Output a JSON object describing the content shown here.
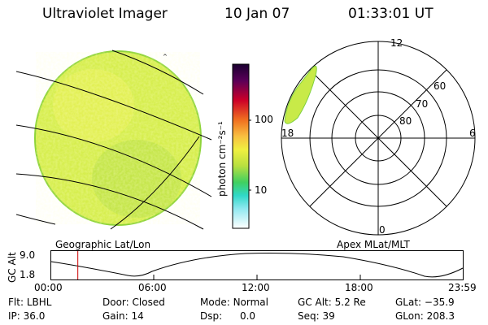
{
  "header": {
    "title": "Ultraviolet Imager",
    "date": "10 Jan 07",
    "time": "01:33:01 UT"
  },
  "colorbar": {
    "unit_label": "photon cm⁻²s⁻¹",
    "tick_high": "100",
    "tick_low": "10"
  },
  "geo_panel": {
    "caption": "Geographic Lat/Lon"
  },
  "polar_panel": {
    "caption": "Apex MLat/MLT",
    "mlt_labels": {
      "top": "12",
      "left": "18",
      "right": "6",
      "bottom": "0"
    },
    "mlat_labels": [
      "60",
      "70",
      "80"
    ]
  },
  "altitude_plot": {
    "ylabel": "GC Alt",
    "y_ticks": [
      "9.0",
      "1.8"
    ],
    "x_ticks": [
      "00:00",
      "06:00",
      "12:00",
      "18:00",
      "23:59"
    ],
    "current_hour": 1.55
  },
  "info": {
    "filter": {
      "label": "Flt:",
      "value": "LBHL"
    },
    "door": {
      "label": "Door:",
      "value": "Closed"
    },
    "mode": {
      "label": "Mode:",
      "value": "Normal"
    },
    "gcalt": {
      "label": "GC Alt:",
      "value": "5.2 Re"
    },
    "glat": {
      "label": "GLat:",
      "value": "−35.9"
    },
    "ip": {
      "label": "IP:",
      "value": "36.0"
    },
    "gain": {
      "label": "Gain:",
      "value": "14"
    },
    "dsp": {
      "label": "Dsp:",
      "value": "0.0"
    },
    "seq": {
      "label": "Seq:",
      "value": "39"
    },
    "glon": {
      "label": "GLon:",
      "value": "208.3"
    }
  },
  "colors": {
    "disk": "#d8f050",
    "disk_edge": "#9ad83c",
    "marker": "#cc0000"
  }
}
